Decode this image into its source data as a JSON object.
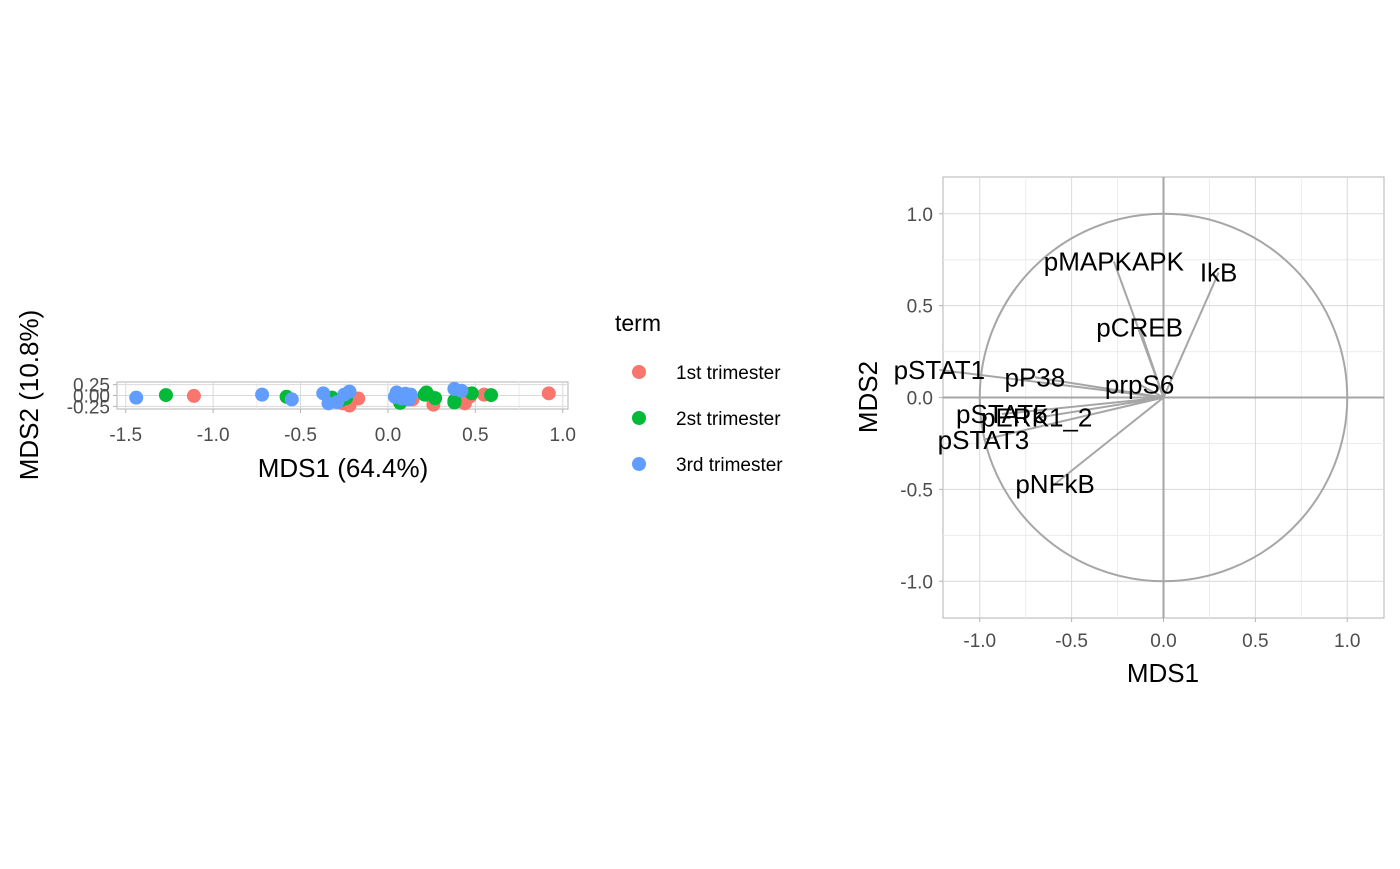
{
  "chart_data": [
    {
      "type": "scatter",
      "xlabel": "MDS1 (64.4%)",
      "ylabel": "MDS2 (10.8%)",
      "xlim": [
        -1.55,
        1.03
      ],
      "ylim": [
        -0.31,
        0.31
      ],
      "x_ticks": [
        -1.5,
        -1.0,
        -0.5,
        0.0,
        0.5,
        1.0
      ],
      "x_tick_labels": [
        "-1.5",
        "-1.0",
        "-0.5",
        "0.0",
        "0.5",
        "1.0"
      ],
      "y_ticks": [
        -0.25,
        0.0,
        0.25
      ],
      "y_tick_labels": [
        "-0.25",
        "0.00",
        "0.25"
      ],
      "grid": true,
      "legend": {
        "title": "term",
        "placement": "right",
        "entries": [
          "1st trimester",
          "2st trimester",
          "3rd trimester"
        ]
      },
      "series": [
        {
          "name": "1st trimester",
          "color": "#F8766D",
          "points": [
            [
              0.92,
              0.05
            ],
            [
              -1.11,
              -0.01
            ],
            [
              0.55,
              0.02
            ],
            [
              0.45,
              0.04
            ],
            [
              0.43,
              -0.05
            ],
            [
              0.4,
              -0.13
            ],
            [
              0.47,
              -0.02
            ],
            [
              0.25,
              -0.04
            ],
            [
              0.26,
              -0.21
            ],
            [
              0.14,
              -0.09
            ],
            [
              -0.17,
              -0.07
            ],
            [
              -0.22,
              -0.23
            ],
            [
              -0.26,
              -0.18
            ],
            [
              0.44,
              -0.18
            ]
          ]
        },
        {
          "name": "2st trimester",
          "color": "#00BA38",
          "points": [
            [
              -1.27,
              0.01
            ],
            [
              0.59,
              0.01
            ],
            [
              0.48,
              0.05
            ],
            [
              0.22,
              0.07
            ],
            [
              0.27,
              -0.06
            ],
            [
              0.08,
              -0.12
            ],
            [
              -0.32,
              -0.05
            ],
            [
              -0.24,
              -0.06
            ],
            [
              0.38,
              -0.12
            ],
            [
              0.38,
              -0.16
            ],
            [
              -0.58,
              -0.03
            ],
            [
              0.07,
              -0.17
            ],
            [
              -0.27,
              -0.11
            ],
            [
              0.21,
              0.02
            ]
          ]
        },
        {
          "name": "3rd trimester",
          "color": "#619CFF",
          "points": [
            [
              -1.44,
              -0.05
            ],
            [
              -0.72,
              0.02
            ],
            [
              -0.55,
              -0.09
            ],
            [
              -0.37,
              0.05
            ],
            [
              -0.22,
              0.09
            ],
            [
              -0.25,
              0.02
            ],
            [
              0.05,
              0.07
            ],
            [
              0.1,
              0.04
            ],
            [
              0.13,
              0.02
            ],
            [
              0.04,
              -0.03
            ],
            [
              0.08,
              -0.07
            ],
            [
              0.12,
              -0.09
            ],
            [
              -0.34,
              -0.18
            ],
            [
              -0.29,
              -0.15
            ],
            [
              0.38,
              0.15
            ],
            [
              0.42,
              0.11
            ]
          ]
        }
      ]
    },
    {
      "type": "line",
      "subtype": "correlation-circle",
      "xlabel": "MDS1",
      "ylabel": "MDS2",
      "xlim": [
        -1.2,
        1.2
      ],
      "ylim": [
        -1.2,
        1.2
      ],
      "x_ticks": [
        -1.0,
        -0.5,
        0.0,
        0.5,
        1.0
      ],
      "x_tick_labels": [
        "-1.0",
        "-0.5",
        "0.0",
        "0.5",
        "1.0"
      ],
      "y_ticks": [
        -1.0,
        -0.5,
        0.0,
        0.5,
        1.0
      ],
      "y_tick_labels": [
        "-1.0",
        "-0.5",
        "0.0",
        "0.5",
        "1.0"
      ],
      "grid": true,
      "circle_radius": 1.0,
      "line_color": "#A6A6A6",
      "vectors": [
        {
          "label": "IkB",
          "x": 0.3,
          "y": 0.68
        },
        {
          "label": "pMAPKAPK",
          "x": -0.27,
          "y": 0.74
        },
        {
          "label": "pCREB",
          "x": -0.13,
          "y": 0.38
        },
        {
          "label": "pSTAT1",
          "x": -1.22,
          "y": 0.15
        },
        {
          "label": "pP38",
          "x": -0.7,
          "y": 0.11
        },
        {
          "label": "prpS6",
          "x": -0.13,
          "y": 0.07
        },
        {
          "label": "pSTAT5",
          "x": -0.88,
          "y": -0.09
        },
        {
          "label": "pERK1_2",
          "x": -0.69,
          "y": -0.11
        },
        {
          "label": "pSTAT3",
          "x": -0.98,
          "y": -0.23
        },
        {
          "label": "pNFkB",
          "x": -0.59,
          "y": -0.47
        }
      ]
    }
  ]
}
